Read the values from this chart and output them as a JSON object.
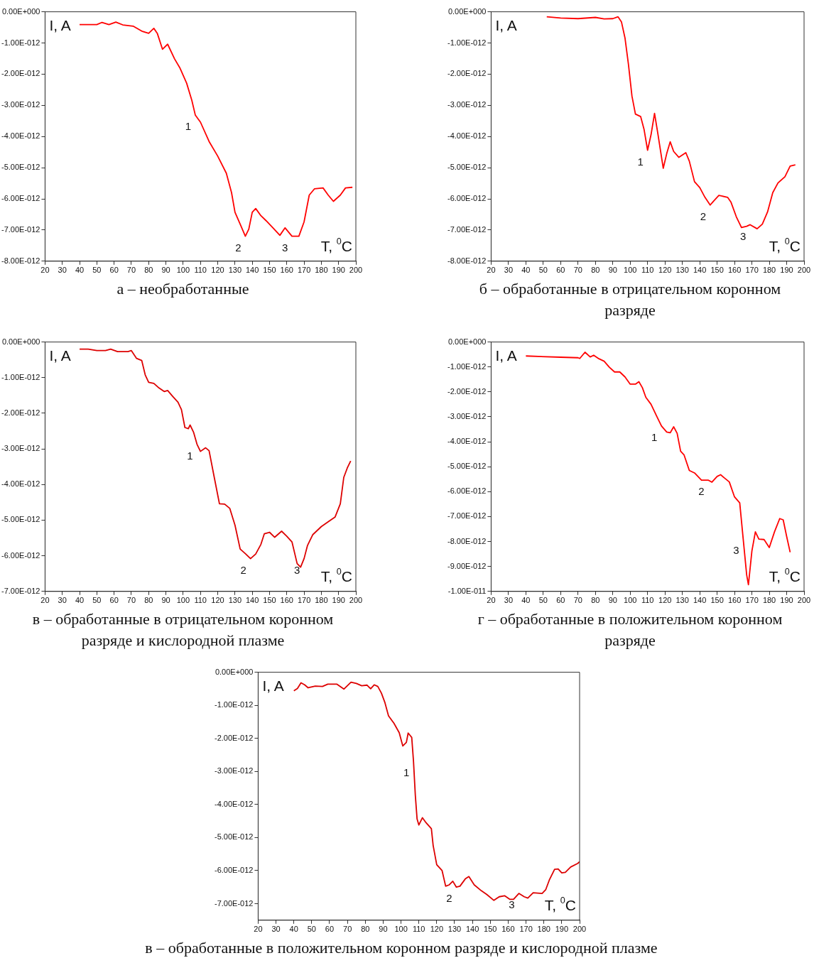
{
  "chart_data": [
    {
      "type": "line",
      "title": "а – необработанные",
      "xlim": [
        20,
        200
      ],
      "xticks": [
        20,
        30,
        40,
        50,
        60,
        70,
        80,
        90,
        100,
        110,
        120,
        130,
        140,
        150,
        160,
        170,
        180,
        190,
        200
      ],
      "ylim": [
        -8e-12,
        0
      ],
      "yticks": [
        {
          "value": 0,
          "label": "0.00E+000"
        },
        {
          "value": -1e-12,
          "label": "-1.00E-012"
        },
        {
          "value": -2e-12,
          "label": "-2.00E-012"
        },
        {
          "value": -3e-12,
          "label": "-3.00E-012"
        },
        {
          "value": -4e-12,
          "label": "-4.00E-012"
        },
        {
          "value": -5e-12,
          "label": "-5.00E-012"
        },
        {
          "value": -6e-12,
          "label": "-6.00E-012"
        },
        {
          "value": -7e-12,
          "label": "-7.00E-012"
        },
        {
          "value": -8e-12,
          "label": "-8.00E-012"
        }
      ],
      "annotations": [
        "I, A",
        "T, $^{0}$C",
        {
          "text": "1",
          "x": 107,
          "y": -3.31e-12
        },
        {
          "text": "2",
          "x": 136,
          "y": -7.2e-12
        },
        {
          "text": "3",
          "x": 163,
          "y": -7.2e-12
        }
      ],
      "series": [
        {
          "color": "#ff0000",
          "x": [
            40,
            50,
            53,
            57,
            61,
            65,
            71,
            76,
            80,
            83,
            85,
            88,
            91,
            95,
            98,
            102,
            105,
            107,
            110,
            115,
            120,
            125,
            128,
            130,
            133,
            136,
            138,
            140,
            142,
            145,
            148,
            152,
            156,
            159,
            163,
            167,
            170,
            173,
            176,
            181,
            184,
            187,
            191,
            194,
            198
          ],
          "values": [
            -4.1e-13,
            -4.1e-13,
            -3.4e-13,
            -4.1e-13,
            -3.3e-13,
            -4.2e-13,
            -4.6e-13,
            -6.2e-13,
            -6.9e-13,
            -5.3e-13,
            -6.9e-13,
            -1.2e-12,
            -1.04e-12,
            -1.51e-12,
            -1.79e-12,
            -2.29e-12,
            -2.84e-12,
            -3.31e-12,
            -3.54e-12,
            -4.16e-12,
            -4.63e-12,
            -5.18e-12,
            -5.8e-12,
            -6.43e-12,
            -6.81e-12,
            -7.2e-12,
            -6.97e-12,
            -6.43e-12,
            -6.31e-12,
            -6.54e-12,
            -6.7e-12,
            -6.93e-12,
            -7.17e-12,
            -6.93e-12,
            -7.2e-12,
            -7.2e-12,
            -6.74e-12,
            -5.88e-12,
            -5.68e-12,
            -5.65e-12,
            -5.88e-12,
            -6.08e-12,
            -5.88e-12,
            -5.65e-12,
            -5.63e-12
          ]
        }
      ]
    },
    {
      "type": "line",
      "title": "б – обработанные в отрицательном коронном разряде",
      "xlim": [
        20,
        200
      ],
      "xticks": [
        20,
        30,
        40,
        50,
        60,
        70,
        80,
        90,
        100,
        110,
        120,
        130,
        140,
        150,
        160,
        170,
        180,
        190,
        200
      ],
      "ylim": [
        -8e-12,
        0
      ],
      "yticks": [
        {
          "value": 0,
          "label": "0.00E+000"
        },
        {
          "value": -1e-12,
          "label": "-1.00E-012"
        },
        {
          "value": -2e-12,
          "label": "-2.00E-012"
        },
        {
          "value": -3e-12,
          "label": "-3.00E-012"
        },
        {
          "value": -4e-12,
          "label": "-4.00E-012"
        },
        {
          "value": -5e-12,
          "label": "-5.00E-012"
        },
        {
          "value": -6e-12,
          "label": "-6.00E-012"
        },
        {
          "value": -7e-12,
          "label": "-7.00E-012"
        },
        {
          "value": -8e-12,
          "label": "-8.00E-012"
        }
      ],
      "annotations": [
        "I, A",
        "T, $^{0}$C",
        {
          "text": "1",
          "x": 110,
          "y": -4.44e-12
        },
        {
          "text": "2",
          "x": 146,
          "y": -6.2e-12
        },
        {
          "text": "3",
          "x": 169,
          "y": -6.83e-12
        }
      ],
      "series": [
        {
          "color": "#ff0000",
          "x": [
            52,
            60,
            70,
            80,
            85,
            90,
            93,
            95,
            97,
            99,
            101,
            103,
            106,
            108,
            110,
            112,
            114,
            116,
            119,
            121,
            123,
            125,
            128,
            132,
            134,
            137,
            140,
            143,
            146,
            148,
            151,
            156,
            158,
            161,
            164,
            167,
            169,
            173,
            176,
            179,
            182,
            185,
            189,
            192,
            195
          ],
          "values": [
            -1.6e-13,
            -2e-13,
            -2.2e-13,
            -1.8e-13,
            -2.3e-13,
            -2.2e-13,
            -1.6e-13,
            -3.3e-13,
            -8.4e-13,
            -1.69e-12,
            -2.7e-12,
            -3.28e-12,
            -3.36e-12,
            -3.78e-12,
            -4.44e-12,
            -3.94e-12,
            -3.26e-12,
            -3.94e-12,
            -5.02e-12,
            -4.55e-12,
            -4.17e-12,
            -4.48e-12,
            -4.67e-12,
            -4.52e-12,
            -4.79e-12,
            -5.45e-12,
            -5.64e-12,
            -5.95e-12,
            -6.2e-12,
            -6.07e-12,
            -5.89e-12,
            -5.95e-12,
            -6.11e-12,
            -6.57e-12,
            -6.92e-12,
            -6.88e-12,
            -6.83e-12,
            -6.96e-12,
            -6.81e-12,
            -6.42e-12,
            -5.8e-12,
            -5.49e-12,
            -5.29e-12,
            -4.95e-12,
            -4.91e-12
          ]
        }
      ]
    },
    {
      "type": "line",
      "title": "в – обработанные в отрицательном коронном разряде и кислородной плазме",
      "xlim": [
        20,
        200
      ],
      "xticks": [
        20,
        30,
        40,
        50,
        60,
        70,
        80,
        90,
        100,
        110,
        120,
        130,
        140,
        150,
        160,
        170,
        180,
        190,
        200
      ],
      "ylim": [
        -7e-12,
        0
      ],
      "yticks": [
        {
          "value": 0,
          "label": "0.00E+000"
        },
        {
          "value": -1e-12,
          "label": "-1.00E-012"
        },
        {
          "value": -2e-12,
          "label": "-2.00E-012"
        },
        {
          "value": -3e-12,
          "label": "-3.00E-012"
        },
        {
          "value": -4e-12,
          "label": "-4.00E-012"
        },
        {
          "value": -5e-12,
          "label": "-5.00E-012"
        },
        {
          "value": -6e-12,
          "label": "-6.00E-012"
        },
        {
          "value": -7e-12,
          "label": "-7.00E-012"
        }
      ],
      "annotations": [
        "I, A",
        "T, $^{0}$C",
        {
          "text": "1",
          "x": 108,
          "y": -2.87e-12
        },
        {
          "text": "2",
          "x": 139,
          "y": -6.08e-12
        },
        {
          "text": "3",
          "x": 170,
          "y": -6.08e-12
        }
      ],
      "series": [
        {
          "color": "#dd0000",
          "x": [
            40,
            45,
            50,
            55,
            58,
            62,
            68,
            70,
            73,
            76,
            78,
            80,
            83,
            86,
            89,
            91,
            94,
            97,
            99,
            101,
            103,
            104,
            106,
            108,
            110,
            113,
            115,
            118,
            121,
            124,
            127,
            130,
            133,
            136,
            139,
            142,
            145,
            147,
            150,
            153,
            157,
            160,
            163,
            166,
            168,
            170,
            172,
            175,
            180,
            185,
            188,
            191,
            193,
            195,
            197
          ],
          "values": [
            -2e-13,
            -2e-13,
            -2.4e-13,
            -2.4e-13,
            -2e-13,
            -2.7e-13,
            -2.7e-13,
            -2.4e-13,
            -4.6e-13,
            -5.2e-13,
            -9.2e-13,
            -1.13e-12,
            -1.16e-12,
            -1.29e-12,
            -1.39e-12,
            -1.36e-12,
            -1.53e-12,
            -1.69e-12,
            -1.9e-12,
            -2.4e-12,
            -2.43e-12,
            -2.33e-12,
            -2.53e-12,
            -2.87e-12,
            -3.07e-12,
            -2.97e-12,
            -3.05e-12,
            -3.8e-12,
            -4.54e-12,
            -4.55e-12,
            -4.67e-12,
            -5.14e-12,
            -5.81e-12,
            -5.94e-12,
            -6.08e-12,
            -5.95e-12,
            -5.68e-12,
            -5.38e-12,
            -5.34e-12,
            -5.48e-12,
            -5.31e-12,
            -5.45e-12,
            -5.61e-12,
            -6.22e-12,
            -6.32e-12,
            -6.08e-12,
            -5.71e-12,
            -5.41e-12,
            -5.18e-12,
            -5.01e-12,
            -4.91e-12,
            -4.54e-12,
            -3.8e-12,
            -3.54e-12,
            -3.34e-12
          ]
        }
      ]
    },
    {
      "type": "line",
      "title": "г – обработанные в положительном коронном разряде",
      "xlim": [
        20,
        200
      ],
      "xticks": [
        20,
        30,
        40,
        50,
        60,
        70,
        80,
        90,
        100,
        110,
        120,
        130,
        140,
        150,
        160,
        170,
        180,
        190,
        200
      ],
      "ylim": [
        -1e-11,
        0
      ],
      "yticks": [
        {
          "value": 0,
          "label": "0.00E+000"
        },
        {
          "value": -1e-12,
          "label": "-1.00E-012"
        },
        {
          "value": -2e-12,
          "label": "-2.00E-012"
        },
        {
          "value": -3e-12,
          "label": "-3.00E-012"
        },
        {
          "value": -4e-12,
          "label": "-4.00E-012"
        },
        {
          "value": -5e-12,
          "label": "-5.00E-012"
        },
        {
          "value": -6e-12,
          "label": "-6.00E-012"
        },
        {
          "value": -7e-12,
          "label": "-7.00E-012"
        },
        {
          "value": -8e-12,
          "label": "-8.00E-012"
        },
        {
          "value": -9e-12,
          "label": "-9.00E-012"
        },
        {
          "value": -1e-11,
          "label": "-1.00E-011"
        }
      ],
      "annotations": [
        "I, A",
        "T, $^{0}$C",
        {
          "text": "1",
          "x": 118,
          "y": -3.37e-12
        },
        {
          "text": "2",
          "x": 145,
          "y": -5.54e-12
        },
        {
          "text": "3",
          "x": 165,
          "y": -7.9e-12
        }
      ],
      "series": [
        {
          "color": "#ff0000",
          "x": [
            40,
            60,
            70,
            71,
            74,
            77,
            79,
            82,
            85,
            88,
            91,
            94,
            97,
            100,
            103,
            105,
            107,
            109,
            112,
            115,
            118,
            121,
            123,
            125,
            127,
            129,
            131,
            134,
            137,
            141,
            145,
            147,
            150,
            152,
            154,
            157,
            160,
            163,
            165,
            167,
            168,
            170,
            172,
            174,
            177,
            180,
            183,
            186,
            188,
            190,
            192
          ],
          "values": [
            -5.6e-13,
            -6.1e-13,
            -6.3e-13,
            -6.6e-13,
            -4.1e-13,
            -6e-13,
            -5.3e-13,
            -6.7e-13,
            -7.7e-13,
            -1.01e-12,
            -1.2e-12,
            -1.2e-12,
            -1.4e-12,
            -1.69e-12,
            -1.69e-12,
            -1.59e-12,
            -1.83e-12,
            -2.22e-12,
            -2.5e-12,
            -2.94e-12,
            -3.37e-12,
            -3.61e-12,
            -3.64e-12,
            -3.4e-12,
            -3.66e-12,
            -4.38e-12,
            -4.53e-12,
            -5.15e-12,
            -5.25e-12,
            -5.54e-12,
            -5.54e-12,
            -5.62e-12,
            -5.39e-12,
            -5.32e-12,
            -5.44e-12,
            -5.61e-12,
            -6.21e-12,
            -6.45e-12,
            -7.9e-12,
            -9.34e-12,
            -9.73e-12,
            -8.38e-12,
            -7.61e-12,
            -7.9e-12,
            -7.92e-12,
            -8.24e-12,
            -7.61e-12,
            -7.08e-12,
            -7.13e-12,
            -7.8e-12,
            -8.43e-12
          ]
        }
      ]
    },
    {
      "type": "line",
      "title": "в – обработанные в положительном коронном разряде и кислородной плазме",
      "xlim": [
        20,
        200
      ],
      "xticks": [
        20,
        30,
        40,
        50,
        60,
        70,
        80,
        90,
        100,
        110,
        120,
        130,
        140,
        150,
        160,
        170,
        180,
        190,
        200
      ],
      "ylim": [
        -7.5e-12,
        0
      ],
      "yticks": [
        {
          "value": 0,
          "label": "0.00E+000"
        },
        {
          "value": -1e-12,
          "label": "-1.00E-012"
        },
        {
          "value": -2e-12,
          "label": "-2.00E-012"
        },
        {
          "value": -3e-12,
          "label": "-3.00E-012"
        },
        {
          "value": -4e-12,
          "label": "-4.00E-012"
        },
        {
          "value": -5e-12,
          "label": "-5.00E-012"
        },
        {
          "value": -6e-12,
          "label": "-6.00E-012"
        },
        {
          "value": -7e-12,
          "label": "-7.00E-012"
        }
      ],
      "annotations": [
        "I, A",
        "T, $^{0}$C",
        {
          "text": "1",
          "x": 107,
          "y": -2.7e-12
        },
        {
          "text": "2",
          "x": 131,
          "y": -6.5e-12
        },
        {
          "text": "3",
          "x": 166,
          "y": -6.69e-12
        }
      ],
      "series": [
        {
          "color": "#dd0000",
          "x": [
            40,
            42,
            44,
            46,
            48,
            52,
            56,
            59,
            64,
            68,
            72,
            75,
            78,
            81,
            83,
            85,
            87,
            89,
            91,
            93,
            96,
            99,
            101,
            103,
            104,
            106,
            107,
            108,
            109,
            110,
            112,
            114,
            117,
            118,
            120,
            123,
            125,
            127,
            129,
            131,
            133,
            136,
            138,
            141,
            145,
            148,
            152,
            155,
            158,
            161,
            163,
            166,
            169,
            171,
            174,
            179,
            181,
            183,
            186,
            188,
            190,
            192,
            195,
            199,
            200
          ],
          "values": [
            -5.6e-13,
            -4.9e-13,
            -3.2e-13,
            -3.8e-13,
            -4.7e-13,
            -4.2e-13,
            -4.3e-13,
            -3.6e-13,
            -3.6e-13,
            -5.1e-13,
            -3e-13,
            -3.4e-13,
            -4.1e-13,
            -3.9e-13,
            -5e-13,
            -3.8e-13,
            -4.3e-13,
            -6.3e-13,
            -9.2e-13,
            -1.32e-12,
            -1.54e-12,
            -1.83e-12,
            -2.23e-12,
            -2.12e-12,
            -1.84e-12,
            -1.97e-12,
            -2.7e-12,
            -3.71e-12,
            -4.44e-12,
            -4.62e-12,
            -4.4e-12,
            -4.55e-12,
            -4.73e-12,
            -5.24e-12,
            -5.82e-12,
            -6e-12,
            -6.47e-12,
            -6.43e-12,
            -6.32e-12,
            -6.5e-12,
            -6.47e-12,
            -6.25e-12,
            -6.18e-12,
            -6.43e-12,
            -6.61e-12,
            -6.72e-12,
            -6.9e-12,
            -6.79e-12,
            -6.76e-12,
            -6.87e-12,
            -6.87e-12,
            -6.69e-12,
            -6.79e-12,
            -6.83e-12,
            -6.67e-12,
            -6.69e-12,
            -6.58e-12,
            -6.29e-12,
            -5.96e-12,
            -5.95e-12,
            -6.07e-12,
            -6.05e-12,
            -5.89e-12,
            -5.78e-12,
            -5.73e-12
          ]
        }
      ]
    }
  ]
}
